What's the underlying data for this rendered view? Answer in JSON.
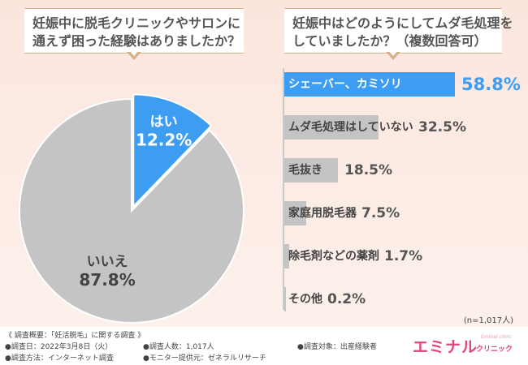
{
  "left_title": [
    "妊娠中に脱毛クリニックやサロンに",
    "通えず困った経験はありましたか？"
  ],
  "right_title": [
    "妊娠中はどのようにしてムダ毛処理を",
    "していましたか？（複数回答可）"
  ],
  "colors": {
    "accent": "#3d9df2",
    "gray": "#c4c4c4",
    "logo": "#e0457a"
  },
  "chart_data": [
    {
      "type": "pie",
      "labels": [
        "はい",
        "いいえ"
      ],
      "values": [
        12.2,
        87.8
      ],
      "value_labels": [
        "12.2%",
        "87.8%"
      ],
      "colors": [
        "#3d9df2",
        "#c4c4c4"
      ]
    },
    {
      "type": "bar",
      "orientation": "horizontal",
      "categories": [
        "シェーバー、カミソリ",
        "ムダ毛処理はしていない",
        "毛抜き",
        "家庭用脱毛器",
        "除毛剤などの薬剤",
        "その他"
      ],
      "values": [
        58.8,
        32.5,
        18.5,
        7.5,
        1.7,
        0.2
      ],
      "value_labels": [
        "58.8%",
        "32.5%",
        "18.5%",
        "7.5%",
        "1.7%",
        "0.2%"
      ],
      "note": "(n=1,017人)"
    }
  ],
  "footer": {
    "survey": "《 調査概要：「妊活脱毛」に関する調査 》",
    "date": "●調査日：2022年3月8日（火）",
    "method": "●調査方法：インターネット調査",
    "people": "●調査人数：1,017人",
    "provider": "●モニター提供元：ゼネラルリサーチ",
    "target": "●調査対象：出産経験者",
    "logo": "エミナル",
    "logo_sub": "クリニック",
    "logo_en": "Eminal clinic"
  }
}
